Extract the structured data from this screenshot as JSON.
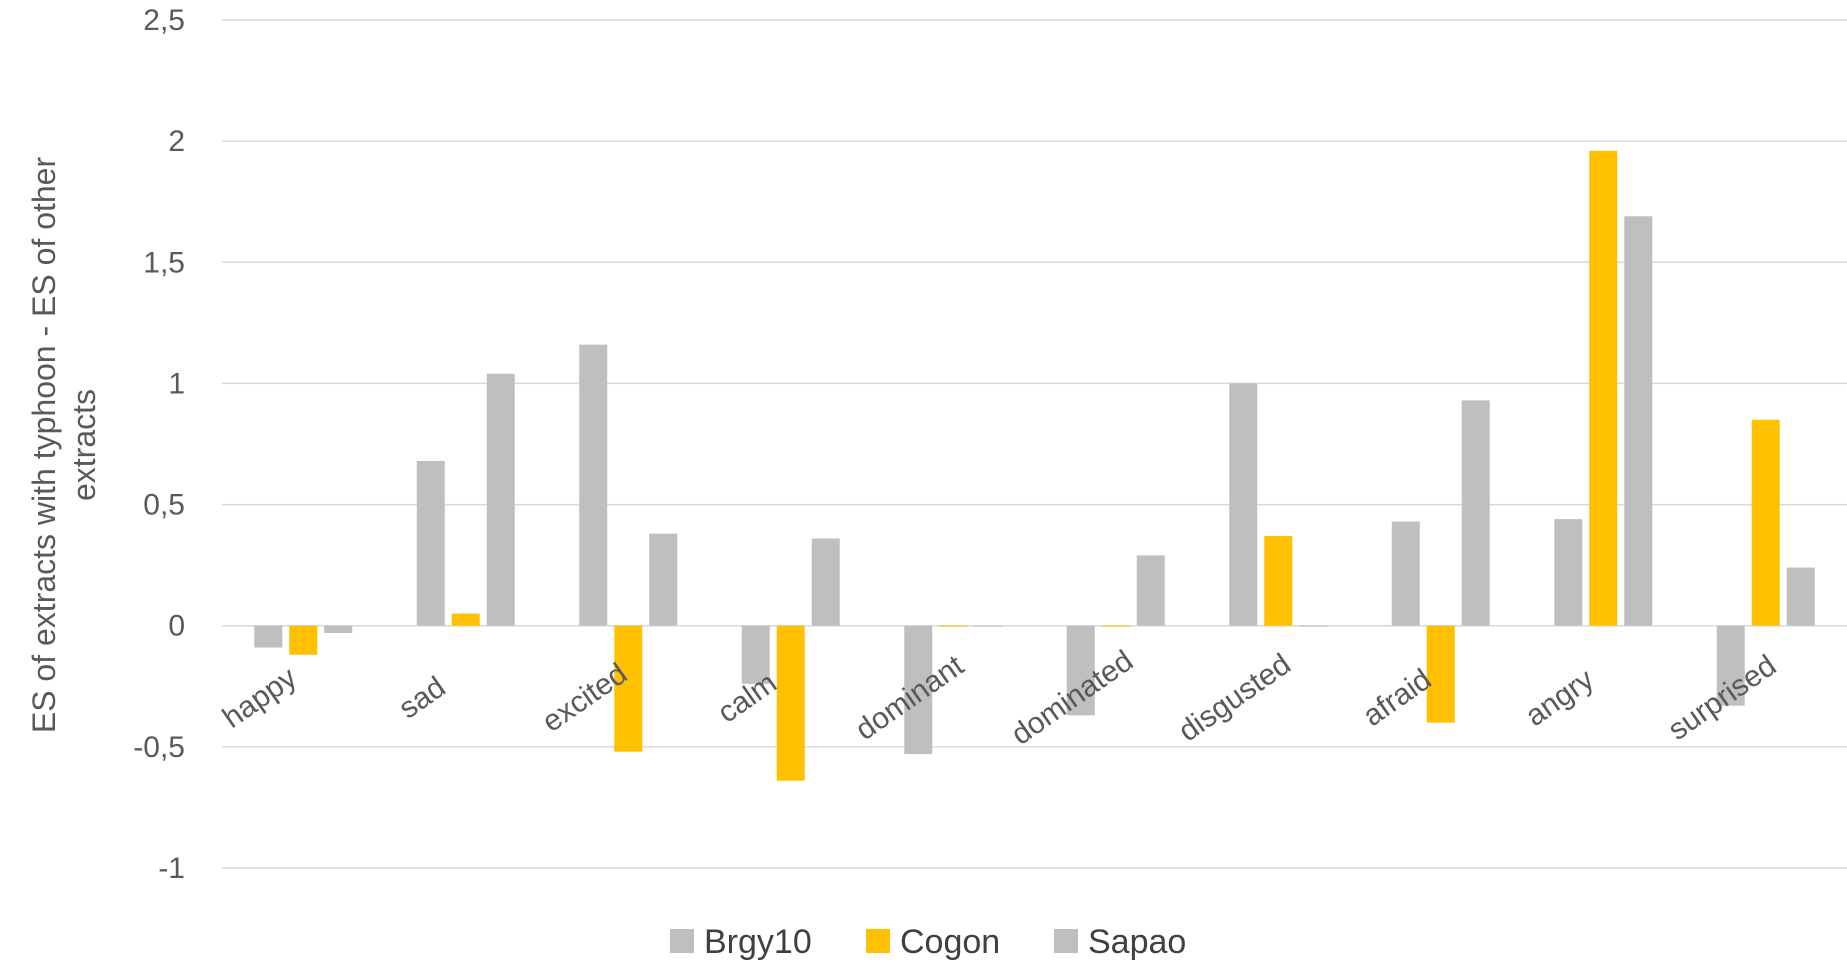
{
  "chart_data": {
    "type": "bar",
    "ylabel": [
      "ES of extracts with typhoon - ES of other",
      "extracts"
    ],
    "ylim": [
      -1,
      2.5
    ],
    "yticks": [
      {
        "value": 2.5,
        "label": "2,5"
      },
      {
        "value": 2,
        "label": "2"
      },
      {
        "value": 1.5,
        "label": "1,5"
      },
      {
        "value": 1,
        "label": "1"
      },
      {
        "value": 0.5,
        "label": "0,5"
      },
      {
        "value": 0,
        "label": "0"
      },
      {
        "value": -0.5,
        "label": "-0,5"
      },
      {
        "value": -1,
        "label": "-1"
      }
    ],
    "grid": true,
    "legend_position": "bottom",
    "categories": [
      "happy",
      "sad",
      "excited",
      "calm",
      "dominant",
      "dominated",
      "disgusted",
      "afraid",
      "angry",
      "surprised"
    ],
    "series": [
      {
        "name": "Brgy10",
        "color": "#bfbfbf",
        "values": [
          -0.09,
          0.68,
          1.16,
          -0.24,
          -0.53,
          -0.37,
          1.0,
          0.43,
          0.44,
          -0.33
        ]
      },
      {
        "name": "Cogon",
        "color": "#ffc000",
        "values": [
          -0.12,
          0.05,
          -0.52,
          -0.64,
          0.0,
          0.0,
          0.37,
          -0.4,
          1.96,
          0.85
        ]
      },
      {
        "name": "Sapao",
        "color": "#bfbfbf",
        "values": [
          -0.03,
          1.04,
          0.38,
          0.36,
          0.0,
          0.29,
          0.0,
          0.93,
          1.69,
          0.24
        ]
      }
    ]
  }
}
